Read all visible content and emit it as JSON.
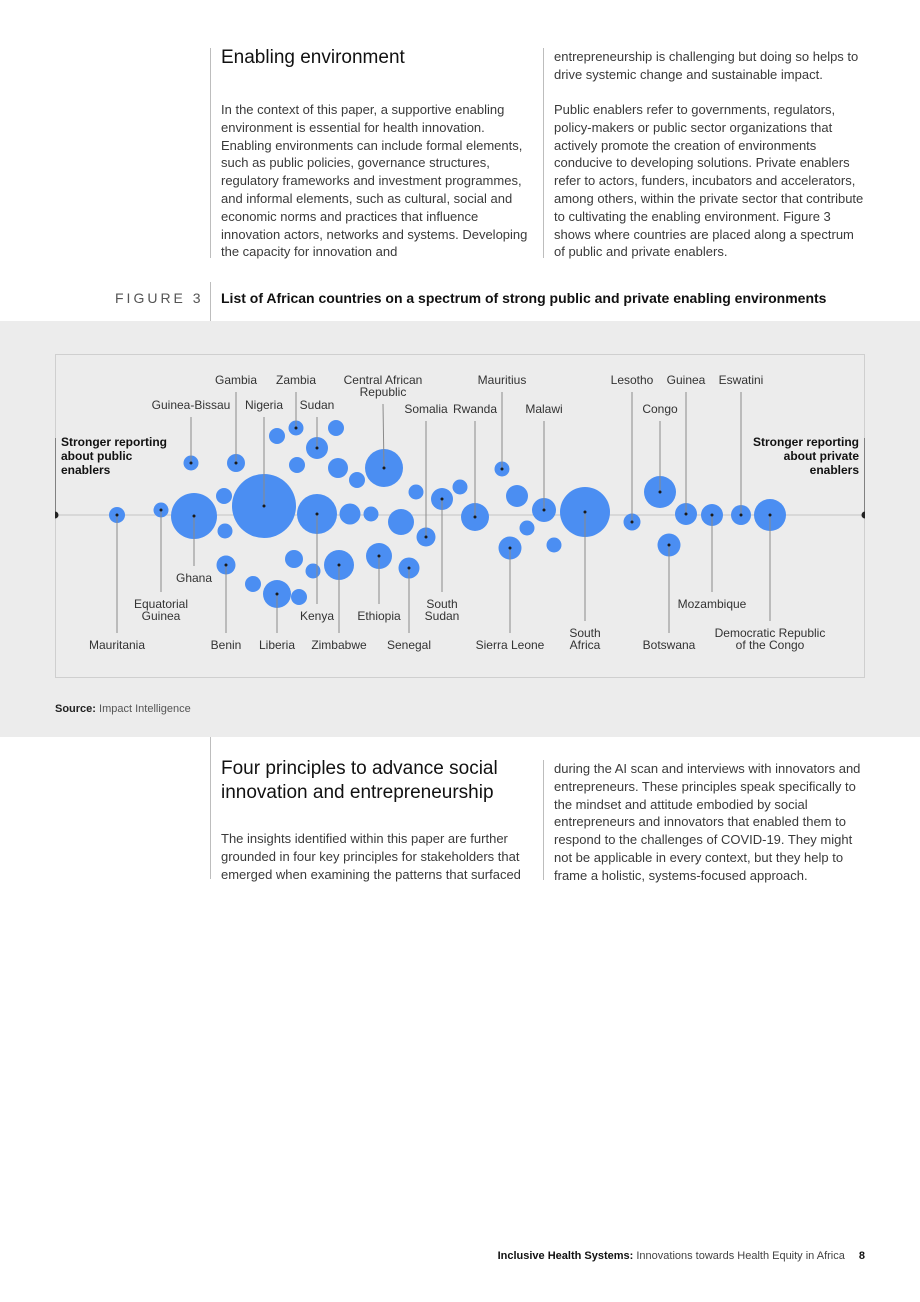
{
  "section1": {
    "title": "Enabling environment",
    "left_text": "In the context of this paper, a supportive enabling environment is essential for health innovation. Enabling environments can include formal elements, such as public policies, governance structures, regulatory frameworks and investment programmes, and informal elements, such as cultural, social and economic norms and practices that influence innovation actors, networks and systems. Developing the capacity for innovation and",
    "right_text_1": "entrepreneurship is challenging but doing so helps to drive systemic change and sustainable impact.",
    "right_text_2": "Public enablers refer to governments, regulators, policy-makers or public sector organizations that actively promote the creation of environments conducive to developing solutions. Private enablers refer to actors, funders, incubators and accelerators, among others, within the private sector that contribute to cultivating the enabling environment. Figure 3 shows where countries are placed along a spectrum of public and private enablers."
  },
  "figure": {
    "label": "FIGURE 3",
    "title": "List of African countries on a spectrum of strong public and private enabling environments",
    "source_label": "Source:",
    "source_text": "Impact Intelligence"
  },
  "chart_data": {
    "type": "scatter",
    "left_label": [
      "Stronger reporting",
      "about public",
      "enablers"
    ],
    "right_label": [
      "Stronger reporting",
      "about private",
      "enablers"
    ],
    "accent_color": "#4b8ef2",
    "labeled_countries": [
      "Gambia",
      "Zambia",
      "Central African Republic",
      "Mauritius",
      "Lesotho",
      "Guinea",
      "Eswatini",
      "Guinea-Bissau",
      "Nigeria",
      "Sudan",
      "Somalia",
      "Rwanda",
      "Malawi",
      "Congo",
      "Ghana",
      "Equatorial Guinea",
      "Kenya",
      "Ethiopia",
      "South Sudan",
      "Mozambique",
      "Mauritania",
      "Benin",
      "Liberia",
      "Zimbabwe",
      "Senegal",
      "Sierra Leone",
      "South Africa",
      "Botswana",
      "Democratic Republic of the Congo"
    ]
  },
  "section2": {
    "title": "Four principles to advance social innovation and entrepreneurship",
    "left_text": "The insights identified within this paper are further grounded in four key principles for stakeholders that emerged when examining the patterns that surfaced",
    "right_text": "during the AI scan and interviews with innovators and entrepreneurs. These principles speak specifically to the mindset and attitude embodied by social entrepreneurs and innovators that enabled them to respond to the challenges of COVID-19. They might not be applicable in every context, but they help to frame a holistic, systems-focused approach."
  },
  "footer": {
    "bold": "Inclusive Health Systems:",
    "rest": " Innovations towards Health Equity in Africa",
    "page": "8"
  }
}
